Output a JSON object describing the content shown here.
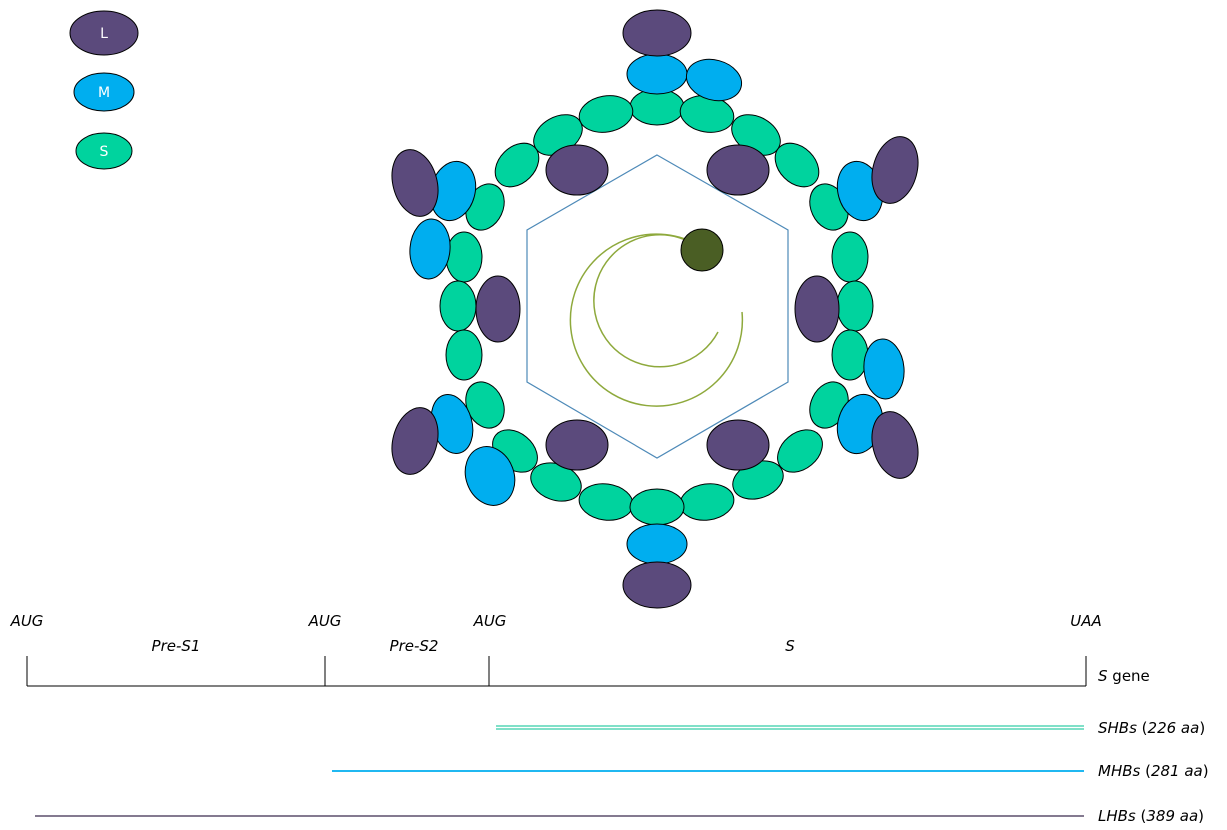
{
  "colors": {
    "L": "#5b4a7c",
    "M": "#00aeef",
    "S": "#00d39e",
    "core": "#4e8ab8",
    "dna": "#8ea93c",
    "polymerase": "#4a5e24",
    "gene_line": "#000000",
    "lhbs_line": "#3a2a4e",
    "shbs_line": "#00c090"
  },
  "legend": [
    {
      "key": "L",
      "label": "L"
    },
    {
      "key": "M",
      "label": "M"
    },
    {
      "key": "S",
      "label": "S"
    }
  ],
  "gene": {
    "codons": [
      "AUG",
      "AUG",
      "AUG",
      "UAA"
    ],
    "regions": [
      "Pre-S1",
      "Pre-S2",
      "S"
    ],
    "gene_label_italic": "S",
    "gene_label_rest": " gene"
  },
  "proteins": [
    {
      "key": "S",
      "name": "SHBs",
      "length": "226 aa"
    },
    {
      "key": "M",
      "name": "MHBs",
      "length": "281 aa"
    },
    {
      "key": "L",
      "name": "LHBs",
      "length": "389 aa"
    }
  ]
}
